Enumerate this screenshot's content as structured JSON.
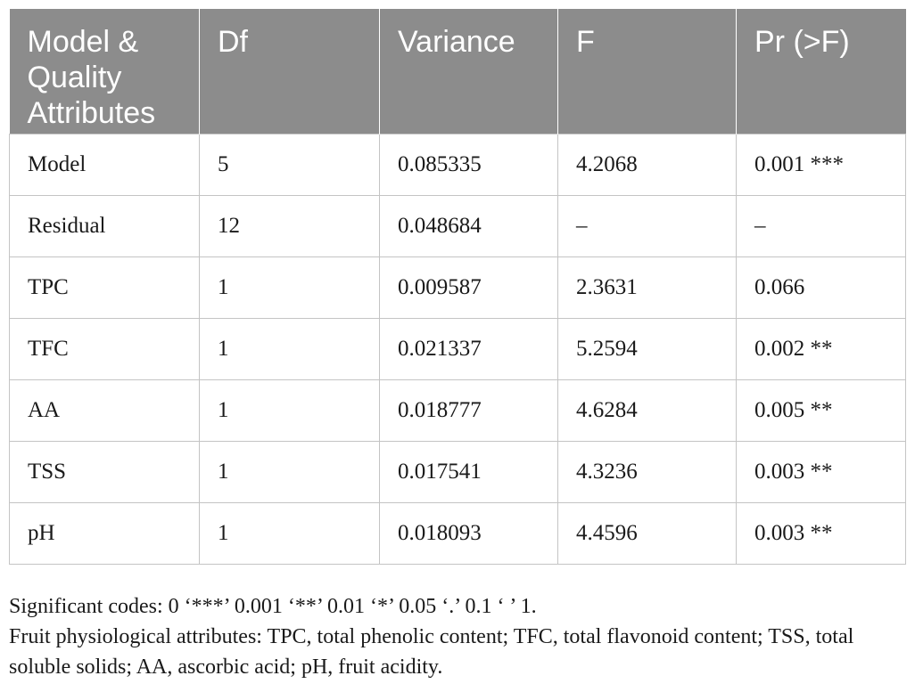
{
  "table": {
    "headers": [
      "Model & Quality Attributes",
      "Df",
      "Variance",
      "F",
      "Pr (>F)"
    ],
    "rows": [
      [
        "Model",
        "5",
        "0.085335",
        "4.2068",
        "0.001 ***"
      ],
      [
        "Residual",
        "12",
        "0.048684",
        "–",
        "–"
      ],
      [
        "TPC",
        "1",
        "0.009587",
        "2.3631",
        "0.066"
      ],
      [
        "TFC",
        "1",
        "0.021337",
        "5.2594",
        "0.002 **"
      ],
      [
        "AA",
        "1",
        "0.018777",
        "4.6284",
        "0.005 **"
      ],
      [
        "TSS",
        "1",
        "0.017541",
        "4.3236",
        "0.003 **"
      ],
      [
        "pH",
        "1",
        "0.018093",
        "4.4596",
        "0.003 **"
      ]
    ]
  },
  "footnotes": {
    "codes": "Significant codes: 0 ‘***’ 0.001 ‘**’ 0.01 ‘*’ 0.05 ‘.’ 0.1 ‘ ’ 1.",
    "abbreviations": "Fruit physiological attributes: TPC, total phenolic content; TFC, total flavonoid content; TSS, total soluble solids; AA, ascorbic acid; pH, fruit acidity."
  }
}
